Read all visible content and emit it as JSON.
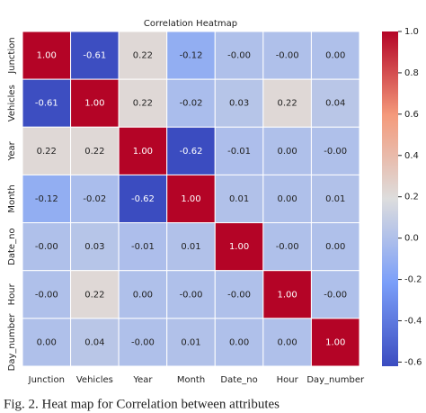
{
  "chart_data": {
    "type": "heatmap",
    "title": "Correlation Heatmap",
    "categories": [
      "Junction",
      "Vehicles",
      "Year",
      "Month",
      "Date_no",
      "Hour",
      "Day_number"
    ],
    "values": [
      [
        1,
        -0.61,
        0.22,
        -0.12,
        0,
        0,
        0
      ],
      [
        -0.61,
        1,
        0.22,
        -0.02,
        0.03,
        0.22,
        0.04
      ],
      [
        0.22,
        0.22,
        1,
        -0.62,
        -0.01,
        0,
        0
      ],
      [
        -0.12,
        -0.02,
        -0.62,
        1,
        0.01,
        0,
        0.01
      ],
      [
        0,
        0.03,
        -0.01,
        0.01,
        1,
        0,
        0
      ],
      [
        0,
        0.22,
        0,
        0,
        0,
        1,
        0
      ],
      [
        0,
        0.04,
        0,
        0.01,
        0,
        0,
        1
      ]
    ],
    "value_labels": [
      [
        "1.00",
        "-0.61",
        "0.22",
        "-0.12",
        "-0.00",
        "-0.00",
        "0.00"
      ],
      [
        "-0.61",
        "1.00",
        "0.22",
        "-0.02",
        "0.03",
        "0.22",
        "0.04"
      ],
      [
        "0.22",
        "0.22",
        "1.00",
        "-0.62",
        "-0.01",
        "0.00",
        "-0.00"
      ],
      [
        "-0.12",
        "-0.02",
        "-0.62",
        "1.00",
        "0.01",
        "0.00",
        "0.01"
      ],
      [
        "-0.00",
        "0.03",
        "-0.01",
        "0.01",
        "1.00",
        "-0.00",
        "0.00"
      ],
      [
        "-0.00",
        "0.22",
        "0.00",
        "-0.00",
        "-0.00",
        "1.00",
        "-0.00"
      ],
      [
        "0.00",
        "0.04",
        "-0.00",
        "0.01",
        "0.00",
        "0.00",
        "1.00"
      ]
    ],
    "colormap": [
      "#3b4cc0",
      "#7b9ff9",
      "#dddddd",
      "#f49a7b",
      "#b40426"
    ],
    "zlim": [
      -0.62,
      1
    ],
    "zticks": [
      {
        "value": 1,
        "label": "1.0"
      },
      0.8,
      0.6,
      0.4,
      0.2,
      {
        "value": 0,
        "label": "0.0"
      },
      -0.2,
      -0.4,
      -0.6
    ]
  },
  "caption": "Fig. 2.   Heat map for Correlation between attributes"
}
